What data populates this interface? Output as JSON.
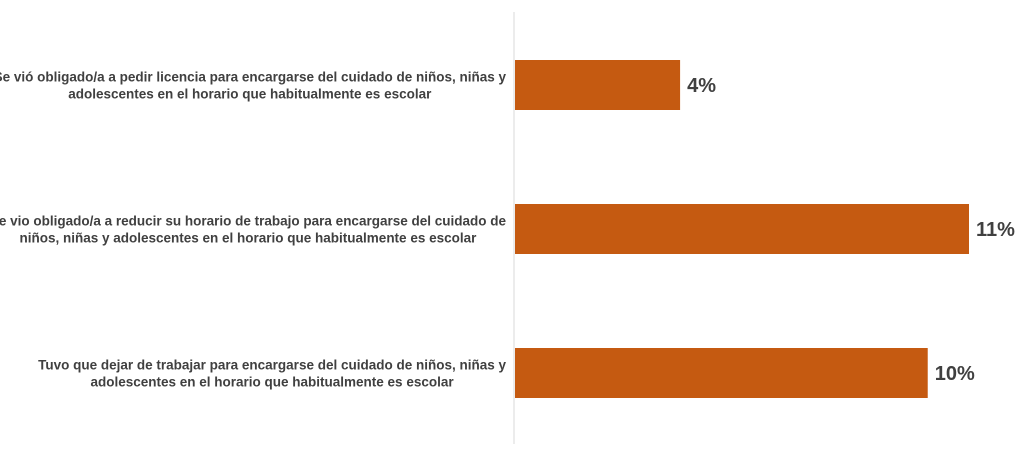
{
  "chart_data": {
    "type": "bar",
    "orientation": "horizontal",
    "title": "",
    "xlabel": "",
    "ylabel": "",
    "categories": [
      [
        "Se vió obligado/a a pedir licencia para encargarse del cuidado de niños, niñas y",
        "adolescentes en el horario que habitualmente es escolar"
      ],
      [
        "Se vio obligado/a a reducir su horario de trabajo para encargarse del cuidado de",
        "niños, niñas y adolescentes en el horario que habitualmente es escolar"
      ],
      [
        "Tuvo que dejar de trabajar para encargarse del cuidado de niños, niñas y",
        "adolescentes en el horario que habitualmente es escolar"
      ]
    ],
    "values": [
      4,
      11,
      10
    ],
    "data_labels": [
      "4%",
      "11%",
      "10%"
    ],
    "unit": "%",
    "xlim": [
      0,
      11
    ],
    "grid": false,
    "legend": "none",
    "colors": {
      "bar": "#c55a11",
      "axis": "#d9d9d9",
      "text": "#404040"
    }
  }
}
